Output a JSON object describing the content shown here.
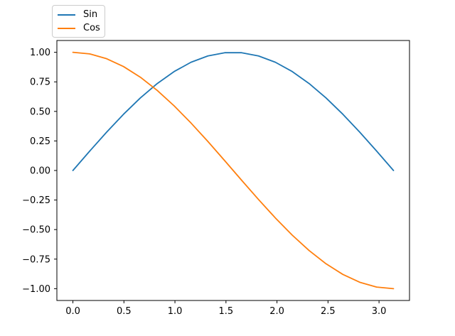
{
  "chart_data": {
    "type": "line",
    "title": "",
    "xlabel": "",
    "ylabel": "",
    "grid": false,
    "background": "#ffffff",
    "frame_color": "#000000",
    "tick_color": "#000000",
    "xlim": [
      -0.15708,
      3.29867
    ],
    "ylim": [
      -1.1,
      1.1
    ],
    "legend": {
      "position": "upper-left-outside-axes",
      "entries": [
        "Sin",
        "Cos"
      ]
    },
    "x": [
      0.0,
      0.1653,
      0.3307,
      0.496,
      0.6614,
      0.8267,
      0.9921,
      1.1574,
      1.3228,
      1.4881,
      1.6535,
      1.8188,
      1.9842,
      2.1495,
      2.3149,
      2.4802,
      2.6456,
      2.8109,
      2.9763,
      3.1416
    ],
    "series": [
      {
        "name": "Sin",
        "color": "#1f77b4",
        "values": [
          0.0,
          0.1646,
          0.3247,
          0.4759,
          0.6142,
          0.7357,
          0.8372,
          0.9158,
          0.9694,
          0.9966,
          0.9966,
          0.9694,
          0.9158,
          0.8372,
          0.7357,
          0.6142,
          0.4759,
          0.3247,
          0.1646,
          0.0
        ]
      },
      {
        "name": "Cos",
        "color": "#ff7f0e",
        "values": [
          1.0,
          0.9864,
          0.9458,
          0.8795,
          0.7891,
          0.6773,
          0.5469,
          0.4017,
          0.2455,
          0.0826,
          -0.0826,
          -0.2455,
          -0.4017,
          -0.5469,
          -0.6773,
          -0.7891,
          -0.8795,
          -0.9458,
          -0.9864,
          -1.0
        ]
      }
    ],
    "x_ticks": [
      {
        "value": 0.0,
        "label": "0.0"
      },
      {
        "value": 0.5,
        "label": "0.5"
      },
      {
        "value": 1.0,
        "label": "1.0"
      },
      {
        "value": 1.5,
        "label": "1.5"
      },
      {
        "value": 2.0,
        "label": "2.0"
      },
      {
        "value": 2.5,
        "label": "2.5"
      },
      {
        "value": 3.0,
        "label": "3.0"
      }
    ],
    "y_ticks": [
      {
        "value": 1.0,
        "label": "1.00"
      },
      {
        "value": 0.75,
        "label": "0.75"
      },
      {
        "value": 0.5,
        "label": "0.50"
      },
      {
        "value": 0.25,
        "label": "0.25"
      },
      {
        "value": 0.0,
        "label": "0.00"
      },
      {
        "value": -0.25,
        "label": "−0.25"
      },
      {
        "value": -0.5,
        "label": "−0.50"
      },
      {
        "value": -0.75,
        "label": "−0.75"
      },
      {
        "value": -1.0,
        "label": "−1.00"
      }
    ]
  }
}
